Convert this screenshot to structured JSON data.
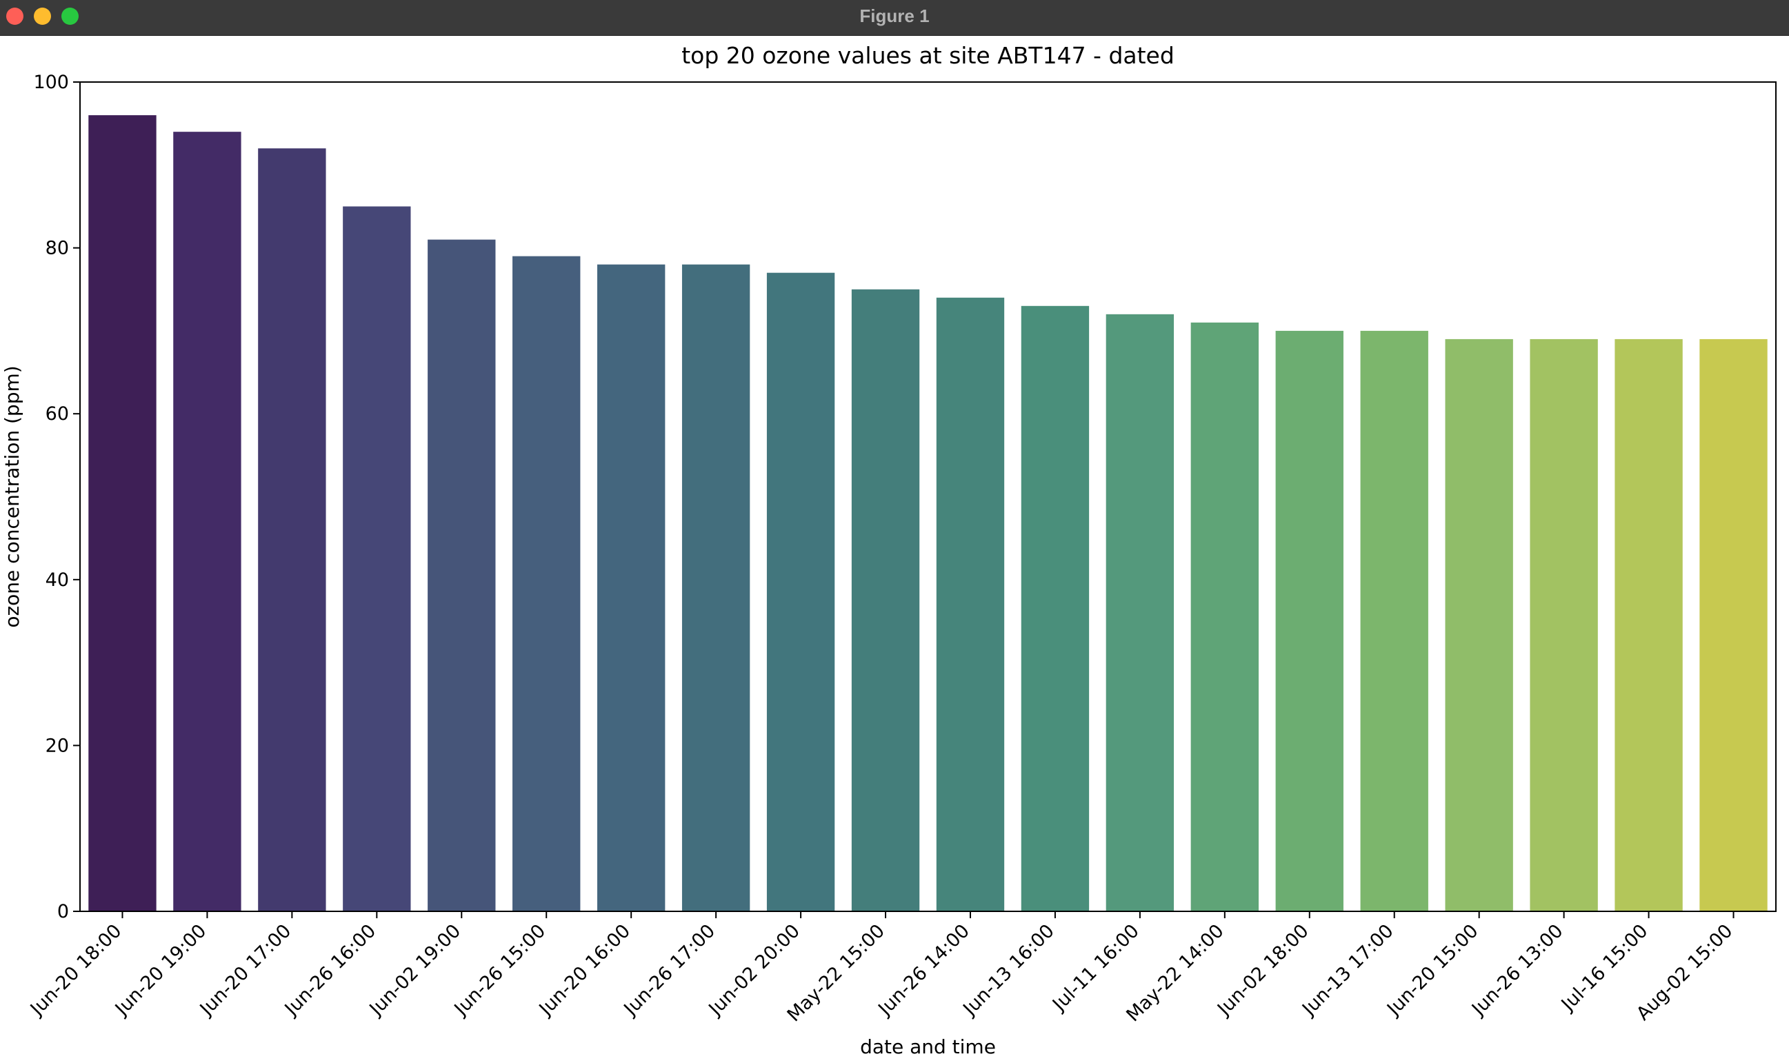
{
  "window": {
    "title": "Figure 1"
  },
  "chart_data": {
    "type": "bar",
    "title": "top 20 ozone values at site ABT147 - dated",
    "xlabel": "date and time",
    "ylabel": "ozone concentration (ppm)",
    "ylim": [
      0,
      100
    ],
    "yticks": [
      "0",
      "20",
      "40",
      "60",
      "80",
      "100"
    ],
    "grid": false,
    "legend": "none",
    "palette": "viridis",
    "categories": [
      "Jun-20 18:00",
      "Jun-20 19:00",
      "Jun-20 17:00",
      "Jun-26 16:00",
      "Jun-02 19:00",
      "Jun-26 15:00",
      "Jun-20 16:00",
      "Jun-26 17:00",
      "Jun-02 20:00",
      "May-22 15:00",
      "Jun-26 14:00",
      "Jun-13 16:00",
      "Jul-11 16:00",
      "May-22 14:00",
      "Jun-02 18:00",
      "Jun-13 17:00",
      "Jun-20 15:00",
      "Jun-26 13:00",
      "Jul-16 15:00",
      "Aug-02 15:00"
    ],
    "values": [
      96,
      94,
      92,
      85,
      81,
      79,
      78,
      78,
      77,
      75,
      74,
      73,
      72,
      71,
      70,
      70,
      69,
      69,
      69,
      69
    ],
    "colors": [
      "#3e1f56",
      "#432b66",
      "#433a6e",
      "#464777",
      "#465579",
      "#465f7d",
      "#44667e",
      "#436e7d",
      "#42767d",
      "#447e7b",
      "#46857b",
      "#4a8f7b",
      "#54997c",
      "#5fa477",
      "#6cad71",
      "#7cb66c",
      "#90bd69",
      "#a2c262",
      "#b3c65a",
      "#c7c950"
    ]
  }
}
